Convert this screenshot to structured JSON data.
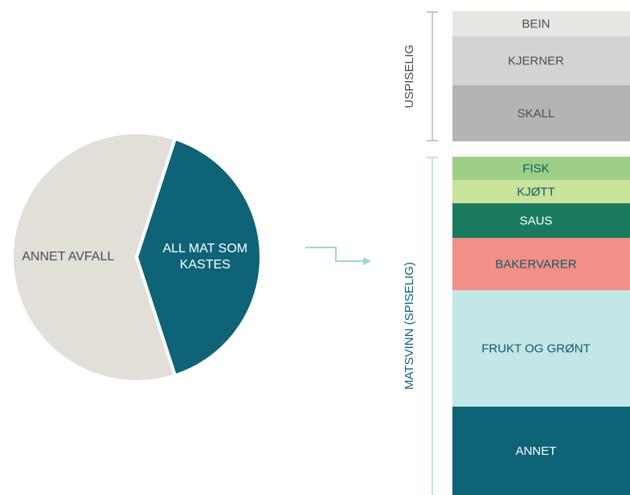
{
  "chart_data": [
    {
      "type": "pie",
      "categories": [
        "ANNET AVFALL",
        "ALL MAT SOM KASTES"
      ],
      "values": [
        60,
        40
      ],
      "colors": [
        "#e2dfd9",
        "#0e6377"
      ]
    },
    {
      "type": "stacked-column",
      "groups": [
        {
          "name": "USPISELIG",
          "color": "#c8c8c8",
          "categories": [
            "BEIN",
            "KJERNER",
            "SKALL"
          ],
          "values": [
            31,
            61,
            70
          ],
          "colors": [
            "#e6e6e3",
            "#d3d4d2",
            "#b3b5b4"
          ]
        },
        {
          "name": "MATSVINN (SPISELIG)",
          "color": "#bfe3e6",
          "categories": [
            "FISK",
            "KJØTT",
            "SAUS",
            "BAKERVARER",
            "FRUKT OG GRØNT",
            "ANNET"
          ],
          "values": [
            29,
            29,
            43,
            65,
            145,
            110
          ],
          "colors": [
            "#9dcf87",
            "#c9e29c",
            "#1a7a5e",
            "#f28f86",
            "#c3e6e6",
            "#0e6377"
          ]
        }
      ]
    }
  ]
}
